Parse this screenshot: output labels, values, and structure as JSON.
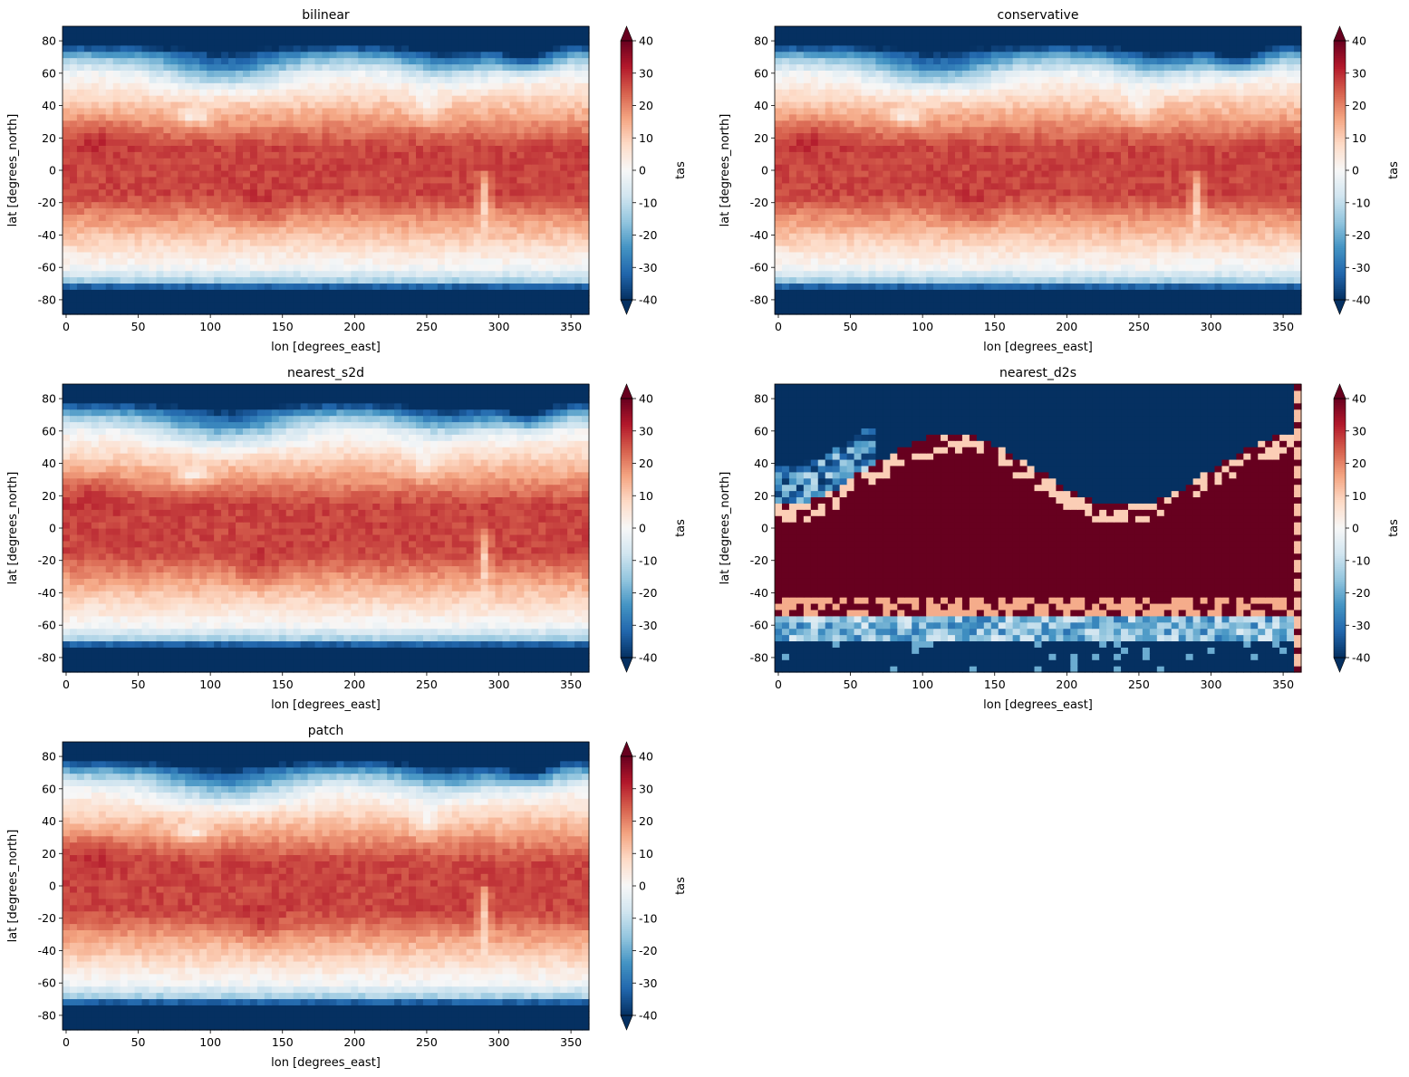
{
  "figure": {
    "colorbar_label": "tas",
    "colorbar_ticks": [
      "-40",
      "-30",
      "-20",
      "-10",
      "0",
      "10",
      "20",
      "30",
      "40"
    ],
    "colormap": "RdBu_r",
    "colormap_stops": [
      "#053061",
      "#2166ac",
      "#4393c3",
      "#92c5de",
      "#d1e5f0",
      "#f7f7f7",
      "#fddbc7",
      "#f4a582",
      "#d6604d",
      "#b2182b",
      "#67001f"
    ]
  },
  "chart_data": [
    {
      "type": "heatmap",
      "title": "bilinear",
      "xlabel": "lon [degrees_east]",
      "ylabel": "lat [degrees_north]",
      "x_ticks": [
        "0",
        "50",
        "100",
        "150",
        "200",
        "250",
        "300",
        "350"
      ],
      "y_ticks": [
        "80",
        "60",
        "40",
        "20",
        "0",
        "-20",
        "-40",
        "-60",
        "-80"
      ],
      "xlim": [
        -2.5,
        362.5
      ],
      "ylim": [
        -89,
        89
      ],
      "vmin": -40,
      "vmax": 40,
      "colorbar_label": "tas",
      "grid": false,
      "field_description": "Near-surface air temperature (degC), smooth field: ~25-35 in tropics, ~-40 over Antarctica and Arctic"
    },
    {
      "type": "heatmap",
      "title": "conservative",
      "xlabel": "lon [degrees_east]",
      "ylabel": "lat [degrees_north]",
      "x_ticks": [
        "0",
        "50",
        "100",
        "150",
        "200",
        "250",
        "300",
        "350"
      ],
      "y_ticks": [
        "80",
        "60",
        "40",
        "20",
        "0",
        "-20",
        "-40",
        "-60",
        "-80"
      ],
      "xlim": [
        -2.5,
        362.5
      ],
      "ylim": [
        -89,
        89
      ],
      "vmin": -40,
      "vmax": 40,
      "colorbar_label": "tas",
      "grid": false
    },
    {
      "type": "heatmap",
      "title": "nearest_s2d",
      "xlabel": "lon [degrees_east]",
      "ylabel": "lat [degrees_north]",
      "x_ticks": [
        "0",
        "50",
        "100",
        "150",
        "200",
        "250",
        "300",
        "350"
      ],
      "y_ticks": [
        "80",
        "60",
        "40",
        "20",
        "0",
        "-20",
        "-40",
        "-60",
        "-80"
      ],
      "xlim": [
        -2.5,
        362.5
      ],
      "ylim": [
        -89,
        89
      ],
      "vmin": -40,
      "vmax": 40,
      "colorbar_label": "tas",
      "grid": false
    },
    {
      "type": "heatmap",
      "title": "nearest_d2s",
      "xlabel": "lon [degrees_east]",
      "ylabel": "lat [degrees_north]",
      "x_ticks": [
        "0",
        "50",
        "100",
        "150",
        "200",
        "250",
        "300",
        "350"
      ],
      "y_ticks": [
        "80",
        "60",
        "40",
        "20",
        "0",
        "-20",
        "-40",
        "-60",
        "-80"
      ],
      "xlim": [
        -2.5,
        362.5
      ],
      "ylim": [
        -89,
        89
      ],
      "vmin": -40,
      "vmax": 40,
      "colorbar_label": "tas",
      "grid": false,
      "field_description": "Saturated field: >=40 from ~45S to ~30-60N, <=-40 poleward, noisy transition bands"
    },
    {
      "type": "heatmap",
      "title": "patch",
      "xlabel": "lon [degrees_east]",
      "ylabel": "lat [degrees_north]",
      "x_ticks": [
        "0",
        "50",
        "100",
        "150",
        "200",
        "250",
        "300",
        "350"
      ],
      "y_ticks": [
        "80",
        "60",
        "40",
        "20",
        "0",
        "-20",
        "-40",
        "-60",
        "-80"
      ],
      "xlim": [
        -2.5,
        362.5
      ],
      "ylim": [
        -89,
        89
      ],
      "vmin": -40,
      "vmax": 40,
      "colorbar_label": "tas",
      "grid": false
    }
  ]
}
